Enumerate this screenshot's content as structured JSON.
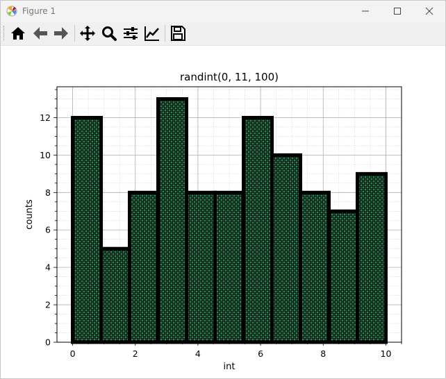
{
  "window": {
    "title": "Figure 1",
    "app_icon": "matplotlib-icon",
    "controls": [
      "minimize-icon",
      "maximize-icon",
      "close-icon"
    ]
  },
  "toolbar": {
    "buttons": [
      "home-icon",
      "back-arrow-icon",
      "forward-arrow-icon",
      "pan-icon",
      "zoom-icon",
      "configure-subplots-icon",
      "edit-axis-icon",
      "save-icon"
    ]
  },
  "chart_data": {
    "type": "bar",
    "title": "randint(0, 11, 100)",
    "xlabel": "int",
    "ylabel": "counts",
    "bin_edges": [
      0.0,
      0.909,
      1.818,
      2.727,
      3.636,
      4.545,
      5.455,
      6.364,
      7.273,
      8.182,
      9.091,
      10.0
    ],
    "values": [
      12,
      5,
      8,
      13,
      8,
      8,
      12,
      10,
      8,
      7,
      9
    ],
    "xlim": [
      -0.5,
      10.5
    ],
    "ylim": [
      0,
      13.65
    ],
    "xticks": [
      0,
      2,
      4,
      6,
      8,
      10
    ],
    "yticks": [
      0,
      2,
      4,
      6,
      8,
      10,
      12
    ],
    "grid": true,
    "minor_grid": true,
    "bar_color": "#2e8b57",
    "edge_color": "#000000",
    "hatch": "O",
    "colors": {
      "grid_major": "#b0b0b0",
      "grid_minor": "#d0d0d0"
    }
  }
}
